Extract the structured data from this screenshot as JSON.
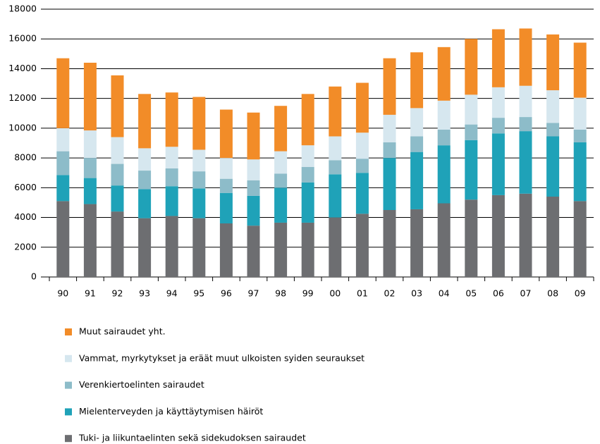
{
  "chart_data": {
    "type": "stacked_bar",
    "categories": [
      "90",
      "91",
      "92",
      "93",
      "94",
      "95",
      "96",
      "97",
      "98",
      "99",
      "00",
      "01",
      "02",
      "03",
      "04",
      "05",
      "06",
      "07",
      "08",
      "09"
    ],
    "series": [
      {
        "name": "Muut sairaudet yht.",
        "color": "#f28c28",
        "values": [
          4700,
          4550,
          4150,
          3650,
          3650,
          3550,
          3250,
          3150,
          3050,
          3450,
          3350,
          3350,
          3800,
          3750,
          3600,
          3750,
          3900,
          3850,
          3750,
          3700
        ]
      },
      {
        "name": "Vammat, myrkytykset ja eräät muut ulkoisten syiden seuraukset",
        "color": "#d6e7ef",
        "values": [
          1550,
          1850,
          1800,
          1500,
          1450,
          1450,
          1400,
          1400,
          1500,
          1450,
          1600,
          1750,
          1850,
          1900,
          1950,
          2000,
          2050,
          2100,
          2200,
          2150
        ]
      },
      {
        "name": "Verenkiertoelinten sairaudet",
        "color": "#8dbcc9",
        "values": [
          1600,
          1350,
          1450,
          1250,
          1200,
          1150,
          950,
          1050,
          950,
          1050,
          950,
          950,
          1050,
          1050,
          1050,
          1050,
          1050,
          950,
          900,
          850
        ]
      },
      {
        "name": "Mielenterveyden ja käyttäytymisen  häiröt",
        "color": "#1fa2b8",
        "values": [
          1750,
          1750,
          1750,
          1950,
          2000,
          2000,
          2050,
          2000,
          2350,
          2700,
          2900,
          2750,
          3500,
          3850,
          3900,
          4000,
          4150,
          4200,
          4050,
          3950
        ]
      },
      {
        "name": "Tuki- ja liikuntaelinten sekä sidekudoksen sairaudet",
        "color": "#6d6e71",
        "values": [
          5100,
          4900,
          4400,
          3950,
          4100,
          3950,
          3600,
          3450,
          3650,
          3650,
          4000,
          4250,
          4500,
          4550,
          4950,
          5200,
          5500,
          5600,
          5400,
          5100
        ]
      }
    ],
    "ylim": [
      0,
      18000
    ],
    "yticks": [
      0,
      2000,
      4000,
      6000,
      8000,
      10000,
      12000,
      14000,
      16000,
      18000
    ],
    "grid": true
  }
}
